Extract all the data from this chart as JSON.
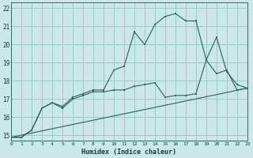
{
  "title": "",
  "xlabel": "Humidex (Indice chaleur)",
  "background_color": "#cce8e4",
  "grid_color": "#99ccc4",
  "line_color": "#2a6b5e",
  "xlim": [
    0,
    23
  ],
  "ylim": [
    14.7,
    22.3
  ],
  "xtick_labels": [
    "0",
    "1",
    "2",
    "3",
    "4",
    "5",
    "6",
    "7",
    "8",
    "9",
    "10",
    "11",
    "12",
    "13",
    "14",
    "15",
    "16",
    "17",
    "18",
    "19",
    "20",
    "21",
    "22",
    "23"
  ],
  "ytick_labels": [
    "15",
    "16",
    "17",
    "18",
    "19",
    "20",
    "21",
    "22"
  ],
  "ytick_values": [
    15,
    16,
    17,
    18,
    19,
    20,
    21,
    22
  ],
  "series1_x": [
    0,
    1,
    2,
    3,
    4,
    5,
    6,
    7,
    8,
    9,
    10,
    11,
    12,
    13,
    14,
    15,
    16,
    17,
    18,
    19,
    20,
    21,
    22,
    23
  ],
  "series1_y": [
    14.9,
    14.9,
    15.3,
    16.5,
    16.8,
    16.6,
    17.1,
    17.3,
    17.5,
    17.5,
    18.6,
    18.8,
    20.7,
    20.0,
    21.1,
    21.55,
    21.7,
    21.3,
    21.3,
    19.15,
    20.4,
    18.5,
    17.8,
    17.6
  ],
  "series2_x": [
    0,
    1,
    2,
    3,
    4,
    5,
    6,
    7,
    8,
    9,
    10,
    11,
    12,
    13,
    14,
    15,
    16,
    17,
    18,
    19,
    20,
    21,
    22,
    23
  ],
  "series2_y": [
    14.9,
    14.9,
    15.3,
    16.5,
    16.8,
    16.5,
    17.0,
    17.2,
    17.4,
    17.4,
    17.5,
    17.5,
    17.7,
    17.8,
    17.9,
    17.1,
    17.2,
    17.2,
    17.3,
    19.15,
    18.4,
    18.6,
    17.5,
    17.6
  ],
  "series3_x": [
    0,
    23
  ],
  "series3_y": [
    14.9,
    17.6
  ]
}
